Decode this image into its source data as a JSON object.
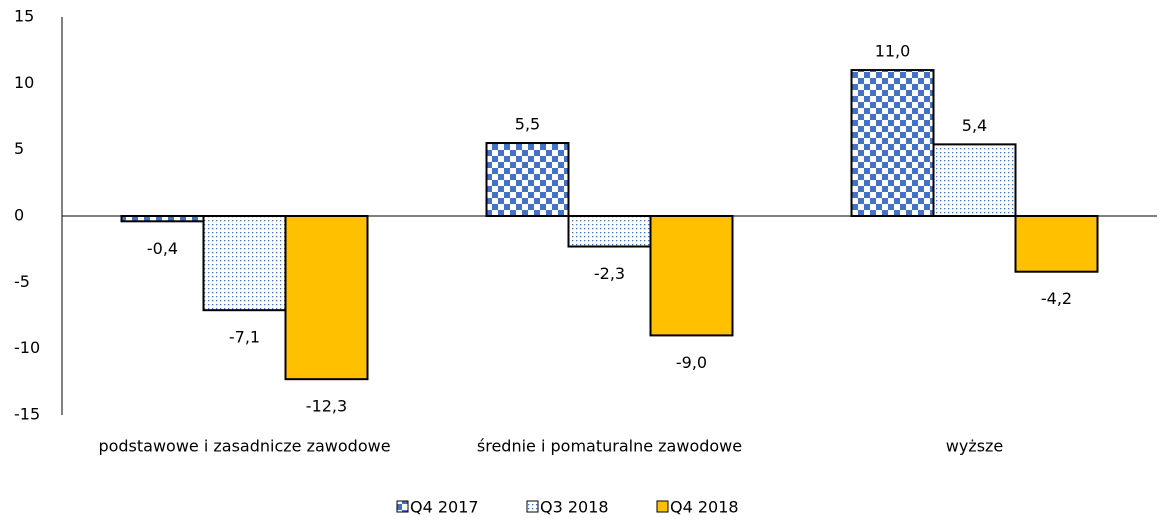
{
  "chart_data": {
    "type": "bar",
    "categories": [
      "podstawowe i zasadnicze zawodowe",
      "średnie i pomaturalne zawodowe",
      "wyższe"
    ],
    "series": [
      {
        "name": "Q4 2017",
        "color": "#4472c4",
        "pattern": "checker",
        "values": [
          -0.4,
          5.5,
          11.0
        ],
        "value_labels": [
          "-0,4",
          "5,5",
          "11,0"
        ]
      },
      {
        "name": "Q3 2018",
        "color": "#4472c4",
        "pattern": "dots",
        "values": [
          -7.1,
          -2.3,
          5.4
        ],
        "value_labels": [
          "-7,1",
          "-2,3",
          "5,4"
        ]
      },
      {
        "name": "Q4 2018",
        "color": "#ffc000",
        "pattern": "solid",
        "values": [
          -12.3,
          -9.0,
          -4.2
        ],
        "value_labels": [
          "-12,3",
          "-9,0",
          "-4,2"
        ]
      }
    ],
    "ylim": [
      -15,
      15
    ],
    "yticks": [
      -15,
      -10,
      -5,
      0,
      5,
      10,
      15
    ],
    "grid": false,
    "legend": "bottom"
  }
}
